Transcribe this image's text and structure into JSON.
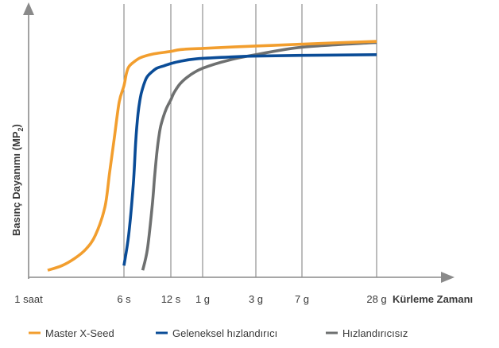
{
  "chart_data": {
    "type": "line",
    "title": "",
    "xlabel": "Kürleme Zamanı",
    "ylabel": "Basınç Dayanımı (MP",
    "ylabel_sub": "2",
    "ylabel_close": ")",
    "x_ticks": [
      "1 saat",
      "6 s",
      "12 s",
      "1 g",
      "3 g",
      "7 g",
      "28 g"
    ],
    "x_positions": [
      0,
      1,
      2,
      3,
      4,
      5,
      6
    ],
    "xlim": [
      -0.4,
      7.4
    ],
    "ylim": [
      0,
      100
    ],
    "grid": "vertical at ticks",
    "legend_position": "bottom",
    "series": [
      {
        "name": "Master X-Seed",
        "color": "#f29e2e",
        "x": [
          0.2,
          0.35,
          0.48,
          0.6,
          0.7,
          0.8,
          0.85,
          0.9,
          0.95,
          1.0,
          1.05,
          1.1,
          1.2,
          1.35,
          1.6,
          2.0,
          2.3,
          3.0,
          4.0,
          5.0,
          6.0
        ],
        "y": [
          3,
          5,
          8,
          12,
          18,
          30,
          45,
          60,
          75,
          82,
          87,
          90,
          92,
          94,
          95.5,
          96.7,
          97.5,
          98,
          99,
          99.8,
          101
        ]
      },
      {
        "name": "Geleneksel hızlandırıcı",
        "color": "#0a4c97",
        "x": [
          1.0,
          1.1,
          1.2,
          1.25,
          1.3,
          1.35,
          1.4,
          1.45,
          1.5,
          1.6,
          1.7,
          1.85,
          2.0,
          2.3,
          2.8,
          3.5,
          4.0,
          5.0,
          6.0
        ],
        "y": [
          5,
          18,
          40,
          58,
          70,
          77,
          81,
          84,
          86,
          88,
          89.5,
          90.5,
          91.5,
          92.5,
          93.5,
          94.3,
          94.7,
          95,
          95.3
        ]
      },
      {
        "name": "Hızlandırıcısız",
        "color": "#6e7070",
        "x": [
          1.4,
          1.5,
          1.6,
          1.65,
          1.7,
          1.75,
          1.8,
          1.9,
          2.0,
          2.1,
          2.3,
          2.6,
          3.0,
          3.5,
          4.0,
          5.0,
          6.0
        ],
        "y": [
          3,
          12,
          30,
          42,
          53,
          61,
          66,
          72,
          76,
          79,
          83,
          86.5,
          89.5,
          93,
          95.3,
          98.5,
          100.5
        ]
      }
    ]
  }
}
